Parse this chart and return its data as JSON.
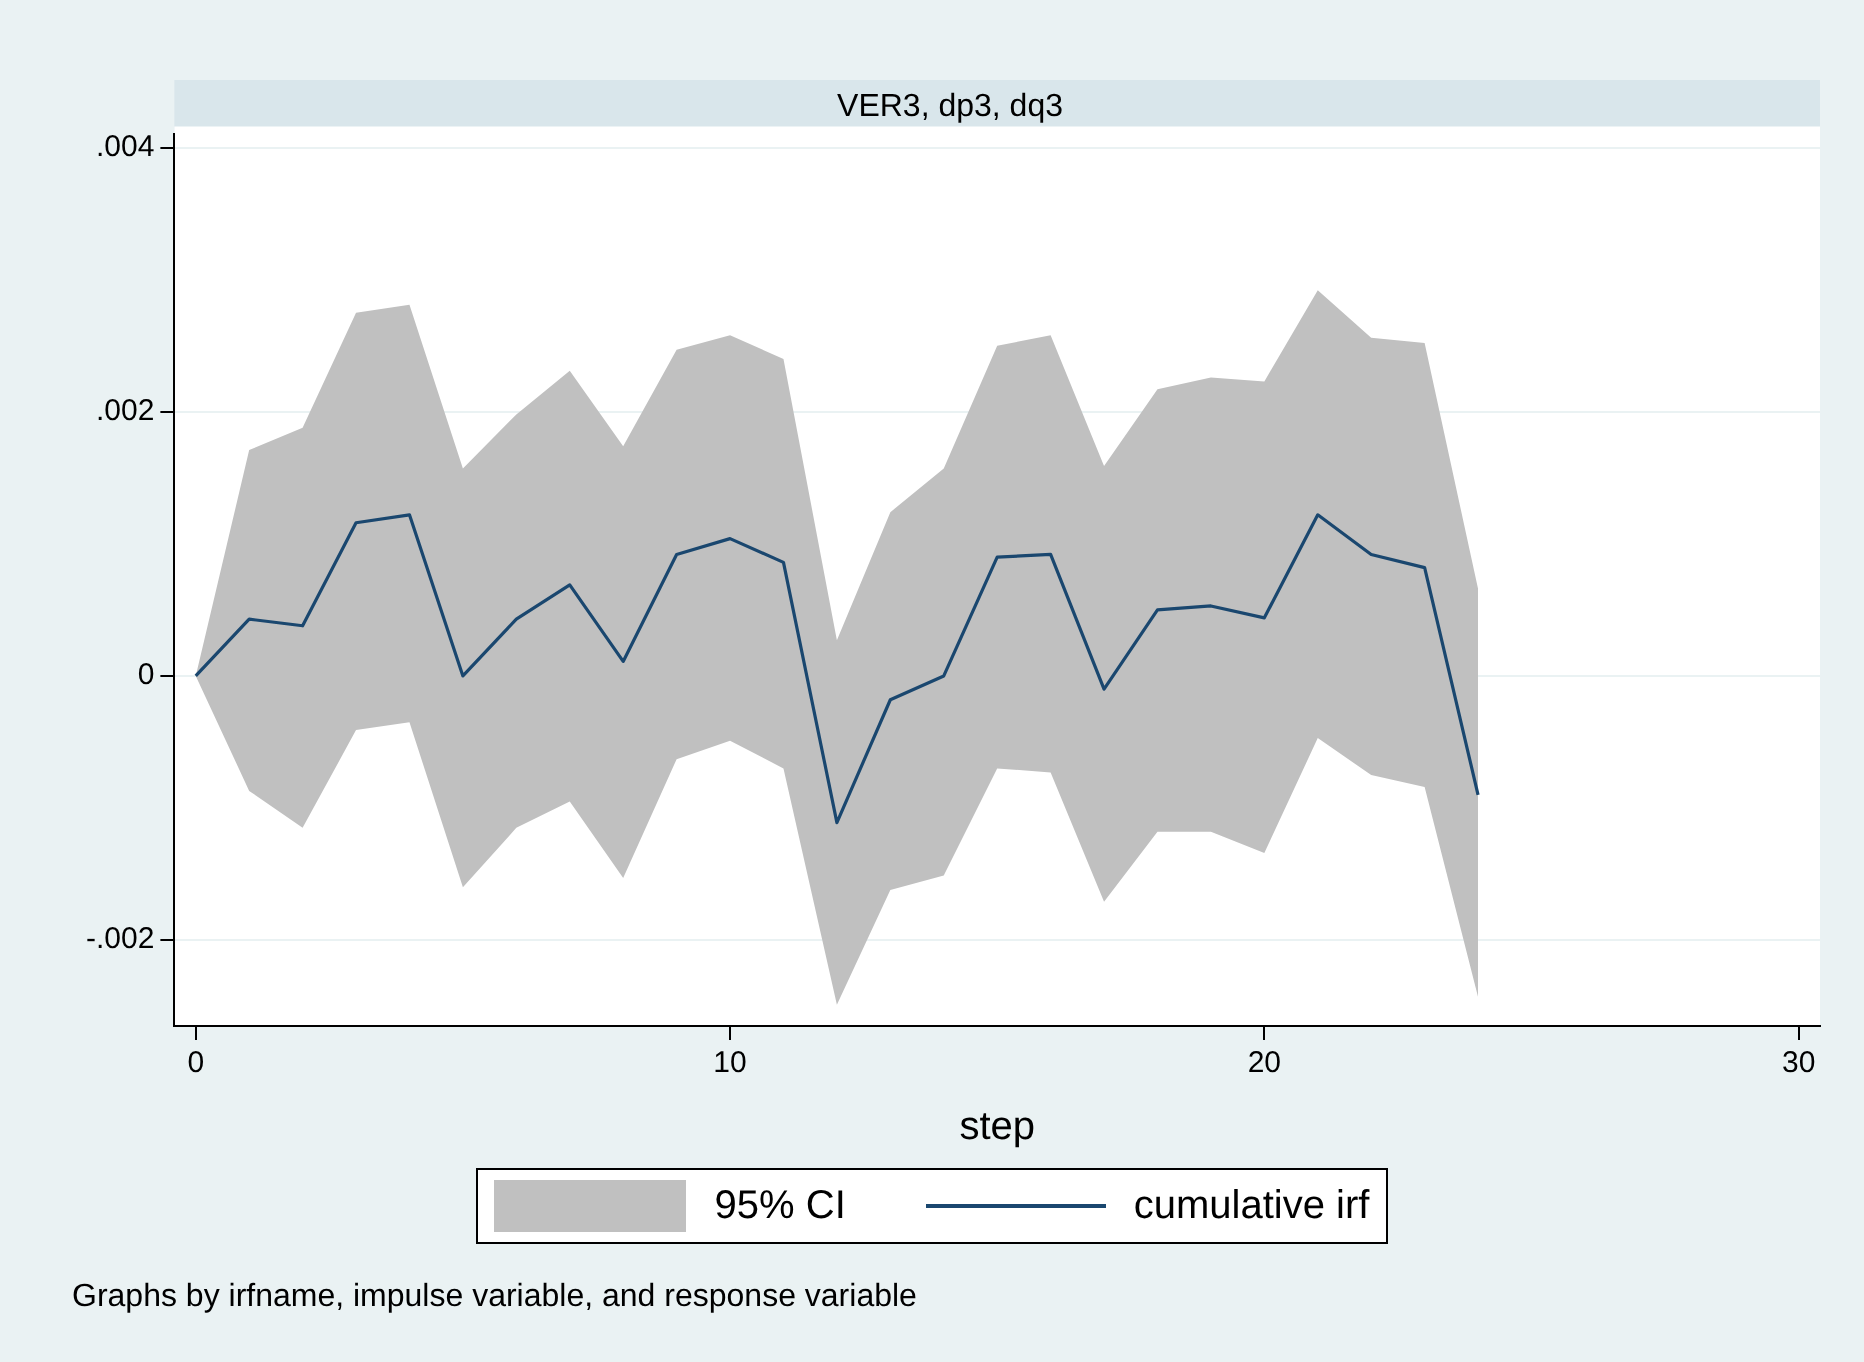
{
  "chart_data": {
    "type": "line",
    "title": "VER3, dp3, dq3",
    "xlabel": "step",
    "x": [
      0,
      1,
      2,
      3,
      4,
      5,
      6,
      7,
      8,
      9,
      10,
      11,
      12,
      13,
      14,
      15,
      16,
      17,
      18,
      19,
      20,
      21,
      22,
      23,
      24
    ],
    "series": [
      {
        "name": "cumulative irf",
        "color": "#1a476f",
        "values": [
          0,
          0.00043,
          0.00038,
          0.00116,
          0.00122,
          0,
          0.00043,
          0.00069,
          0.00011,
          0.00092,
          0.00104,
          0.00086,
          -0.00111,
          -0.00018,
          0,
          0.0009,
          0.00092,
          -0.0001,
          0.0005,
          0.00053,
          0.00044,
          0.00122,
          0.00092,
          0.00082,
          -0.0009
        ],
        "lower": [
          0,
          -0.00087,
          -0.00115,
          -0.00041,
          -0.00035,
          -0.0016,
          -0.00115,
          -0.00095,
          -0.00153,
          -0.00063,
          -0.00049,
          -0.0007,
          -0.00249,
          -0.00162,
          -0.00151,
          -0.0007,
          -0.00073,
          -0.00171,
          -0.00118,
          -0.00118,
          -0.00134,
          -0.00047,
          -0.00075,
          -0.00084,
          -0.00243
        ],
        "upper": [
          0,
          0.00171,
          0.00188,
          0.00275,
          0.00281,
          0.00157,
          0.00198,
          0.00231,
          0.00174,
          0.00247,
          0.00258,
          0.0024,
          0.00027,
          0.00124,
          0.00157,
          0.0025,
          0.00258,
          0.00159,
          0.00217,
          0.00226,
          0.00223,
          0.00292,
          0.00256,
          0.00252,
          0.00066
        ]
      }
    ],
    "xlim": [
      -0.4,
      30.4
    ],
    "xticks": [
      0,
      10,
      20,
      30
    ],
    "ylim": [
      -0.00265,
      0.0041
    ],
    "yticks": [
      {
        "value": -0.002,
        "label": "-.002"
      },
      0,
      {
        "value": 0.002,
        "label": ".002"
      },
      {
        "value": 0.004,
        "label": ".004"
      }
    ],
    "grid": "y",
    "legend": "bottom",
    "line_style": "solid",
    "marker": "none",
    "annotations": [
      "95% CI",
      "Graphs by irfname, impulse variable, and response variable"
    ]
  }
}
